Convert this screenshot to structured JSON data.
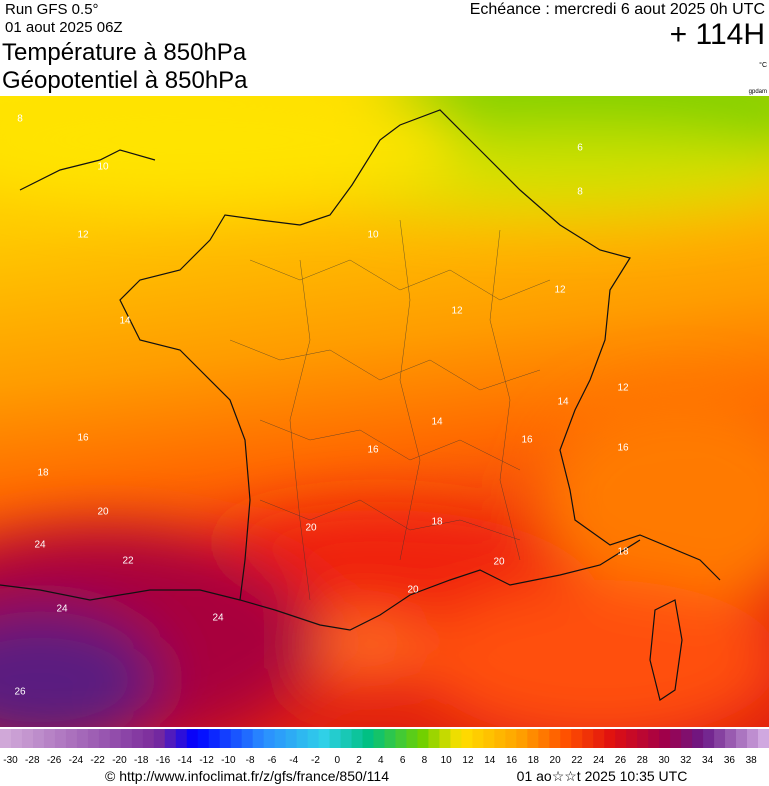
{
  "header": {
    "run": "Run GFS 0.5°",
    "date": "01 aout 2025 06Z",
    "title_line1": "Température à 850hPa",
    "title_line2": "Géopotentiel à 850hPa",
    "echeance": "Echéance : mercredi 6 aout 2025 0h UTC",
    "lead": "+ 114H",
    "unit": "°C",
    "credit": "gpdam"
  },
  "map": {
    "contour_labels": [
      "8",
      "10",
      "12",
      "14",
      "16",
      "18",
      "20",
      "24",
      "22",
      "24",
      "24",
      "26",
      "6",
      "8",
      "10",
      "12",
      "12",
      "14",
      "16",
      "16",
      "12",
      "16",
      "14",
      "18",
      "20",
      "20",
      "20",
      "18"
    ]
  },
  "colorbar": {
    "ticks": [
      -30,
      -28,
      -26,
      -24,
      -22,
      -20,
      -18,
      -16,
      -14,
      -12,
      -10,
      -8,
      -6,
      -4,
      -2,
      0,
      2,
      4,
      6,
      8,
      10,
      12,
      14,
      16,
      18,
      20,
      22,
      24,
      26,
      28,
      30,
      32,
      34,
      36,
      38
    ]
  },
  "footer": {
    "url": "© http://www.infoclimat.fr/z/gfs/france/850/114",
    "generated": "01 ao☆☆t 2025 10:35 UTC"
  }
}
